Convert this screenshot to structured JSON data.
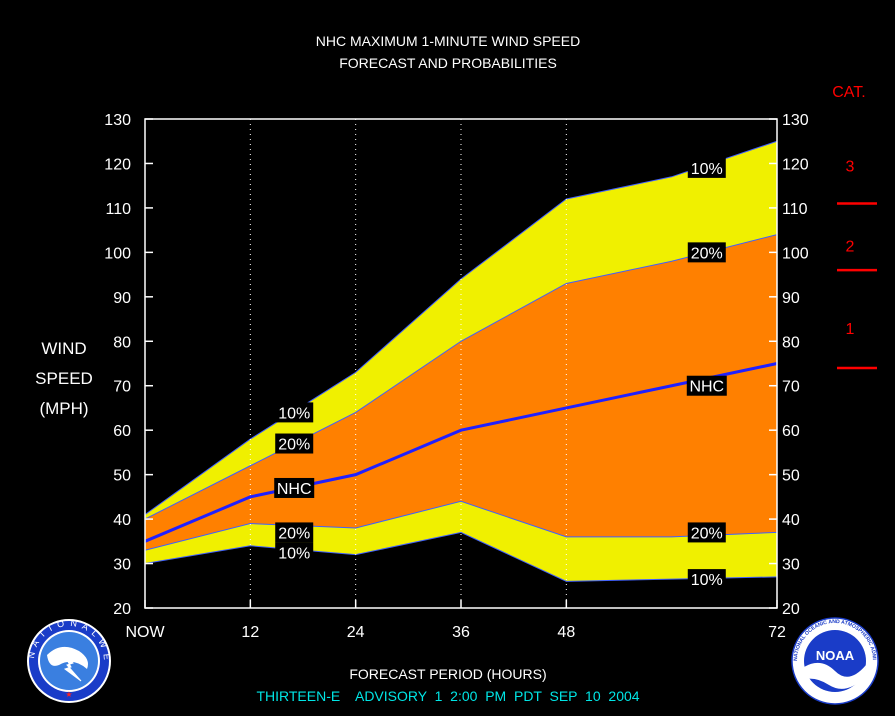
{
  "chart_data": {
    "type": "area",
    "title_line1": "NHC MAXIMUM 1-MINUTE WIND SPEED",
    "title_line2": "FORECAST AND PROBABILITIES",
    "ylabel_lines": [
      "WIND",
      "SPEED",
      "(MPH)"
    ],
    "xlabel": "FORECAST PERIOD (HOURS)",
    "advisory": "THIRTEEN-E    ADVISORY  1  2:00  PM  PDT  SEP  10  2004",
    "cat_header": "CAT.",
    "ylim": [
      20,
      130
    ],
    "xlim": [
      0,
      72
    ],
    "y_ticks": [
      20,
      30,
      40,
      50,
      60,
      70,
      80,
      90,
      100,
      110,
      120,
      130
    ],
    "y_tick_labels": [
      "20",
      "30",
      "40",
      "50",
      "60",
      "70",
      "80",
      "90",
      "100",
      "110",
      "120",
      "130"
    ],
    "x_ticks": [
      {
        "x": 0,
        "label": "NOW"
      },
      {
        "x": 12,
        "label": "12"
      },
      {
        "x": 24,
        "label": "24"
      },
      {
        "x": 36,
        "label": "36"
      },
      {
        "x": 48,
        "label": "48"
      },
      {
        "x": 72,
        "label": "72"
      }
    ],
    "grid_x": [
      12,
      24,
      36,
      48,
      72
    ],
    "series": {
      "upper_10": [
        [
          0,
          41
        ],
        [
          12,
          58
        ],
        [
          24,
          73
        ],
        [
          36,
          94
        ],
        [
          48,
          112
        ],
        [
          60,
          117
        ],
        [
          72,
          125
        ]
      ],
      "upper_20": [
        [
          0,
          40
        ],
        [
          12,
          52
        ],
        [
          24,
          64
        ],
        [
          36,
          80
        ],
        [
          48,
          93
        ],
        [
          60,
          98
        ],
        [
          72,
          104
        ]
      ],
      "nhc": [
        [
          0,
          35
        ],
        [
          12,
          45
        ],
        [
          24,
          50
        ],
        [
          36,
          60
        ],
        [
          48,
          65
        ],
        [
          60,
          70
        ],
        [
          72,
          75
        ]
      ],
      "lower_20": [
        [
          0,
          33
        ],
        [
          12,
          39
        ],
        [
          24,
          38
        ],
        [
          36,
          44
        ],
        [
          48,
          36
        ],
        [
          60,
          36
        ],
        [
          72,
          37
        ]
      ],
      "lower_10": [
        [
          0,
          30
        ],
        [
          12,
          34
        ],
        [
          24,
          32
        ],
        [
          36,
          37
        ],
        [
          48,
          26
        ],
        [
          60,
          26.5
        ],
        [
          72,
          27
        ]
      ]
    },
    "band_labels": [
      {
        "text": "10%",
        "x": 17,
        "y": 64
      },
      {
        "text": "20%",
        "x": 17,
        "y": 57
      },
      {
        "text": "NHC",
        "x": 17,
        "y": 47
      },
      {
        "text": "20%",
        "x": 17,
        "y": 37
      },
      {
        "text": "10%",
        "x": 17,
        "y": 32.5
      },
      {
        "text": "10%",
        "x": 64,
        "y": 119
      },
      {
        "text": "20%",
        "x": 64,
        "y": 100
      },
      {
        "text": "NHC",
        "x": 64,
        "y": 70
      },
      {
        "text": "20%",
        "x": 64,
        "y": 37
      },
      {
        "text": "10%",
        "x": 64,
        "y": 26.5
      }
    ],
    "categories": [
      {
        "label": "1",
        "y": 83
      },
      {
        "label": "2",
        "y": 101.5
      },
      {
        "label": "3",
        "y": 119.5
      }
    ],
    "category_thresholds": [
      74,
      96,
      111
    ],
    "colors": {
      "background": "#000000",
      "outer_band": "#f0f000",
      "inner_band": "#ff8000",
      "nhc_line": "#2020ff",
      "category": "#ff0000",
      "advisory": "#00e5e5"
    }
  },
  "logos": {
    "nws_text": "NATIONAL WEATHER SERVICE",
    "noaa_text": "NOAA",
    "noaa_ring_text": "NATIONAL OCEANIC AND ATMOSPHERIC ADMINISTRATION · U.S. DEPARTMENT OF COMMERCE"
  }
}
